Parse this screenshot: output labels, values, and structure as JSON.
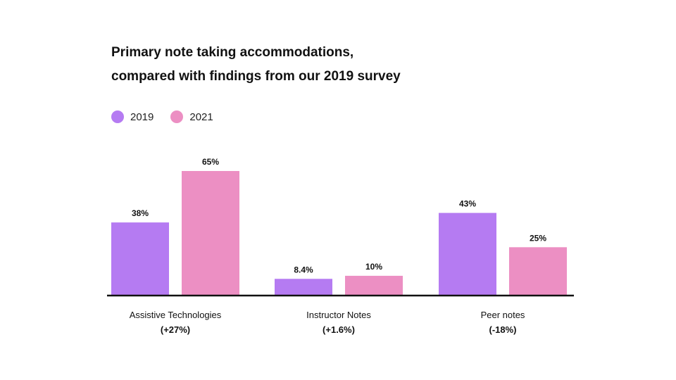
{
  "chart_data": {
    "type": "bar",
    "title_lines": [
      "Primary note taking accommodations,",
      "compared with findings from our 2019 survey"
    ],
    "categories": [
      "Assistive Technologies",
      "Instructor Notes",
      "Peer notes"
    ],
    "category_changes": [
      "(+27%)",
      "(+1.6%)",
      "(-18%)"
    ],
    "series": [
      {
        "name": "2019",
        "color": "#b57bf2",
        "values": [
          38,
          8.4,
          43
        ],
        "value_labels": [
          "38%",
          "8.4%",
          "43%"
        ]
      },
      {
        "name": "2021",
        "color": "#ec8fc3",
        "values": [
          65,
          10,
          25
        ],
        "value_labels": [
          "65%",
          "10%",
          "25%"
        ]
      }
    ],
    "ylim": [
      0,
      65
    ],
    "legend_position": "top-left",
    "grid": false,
    "axis_color": "#111111"
  }
}
